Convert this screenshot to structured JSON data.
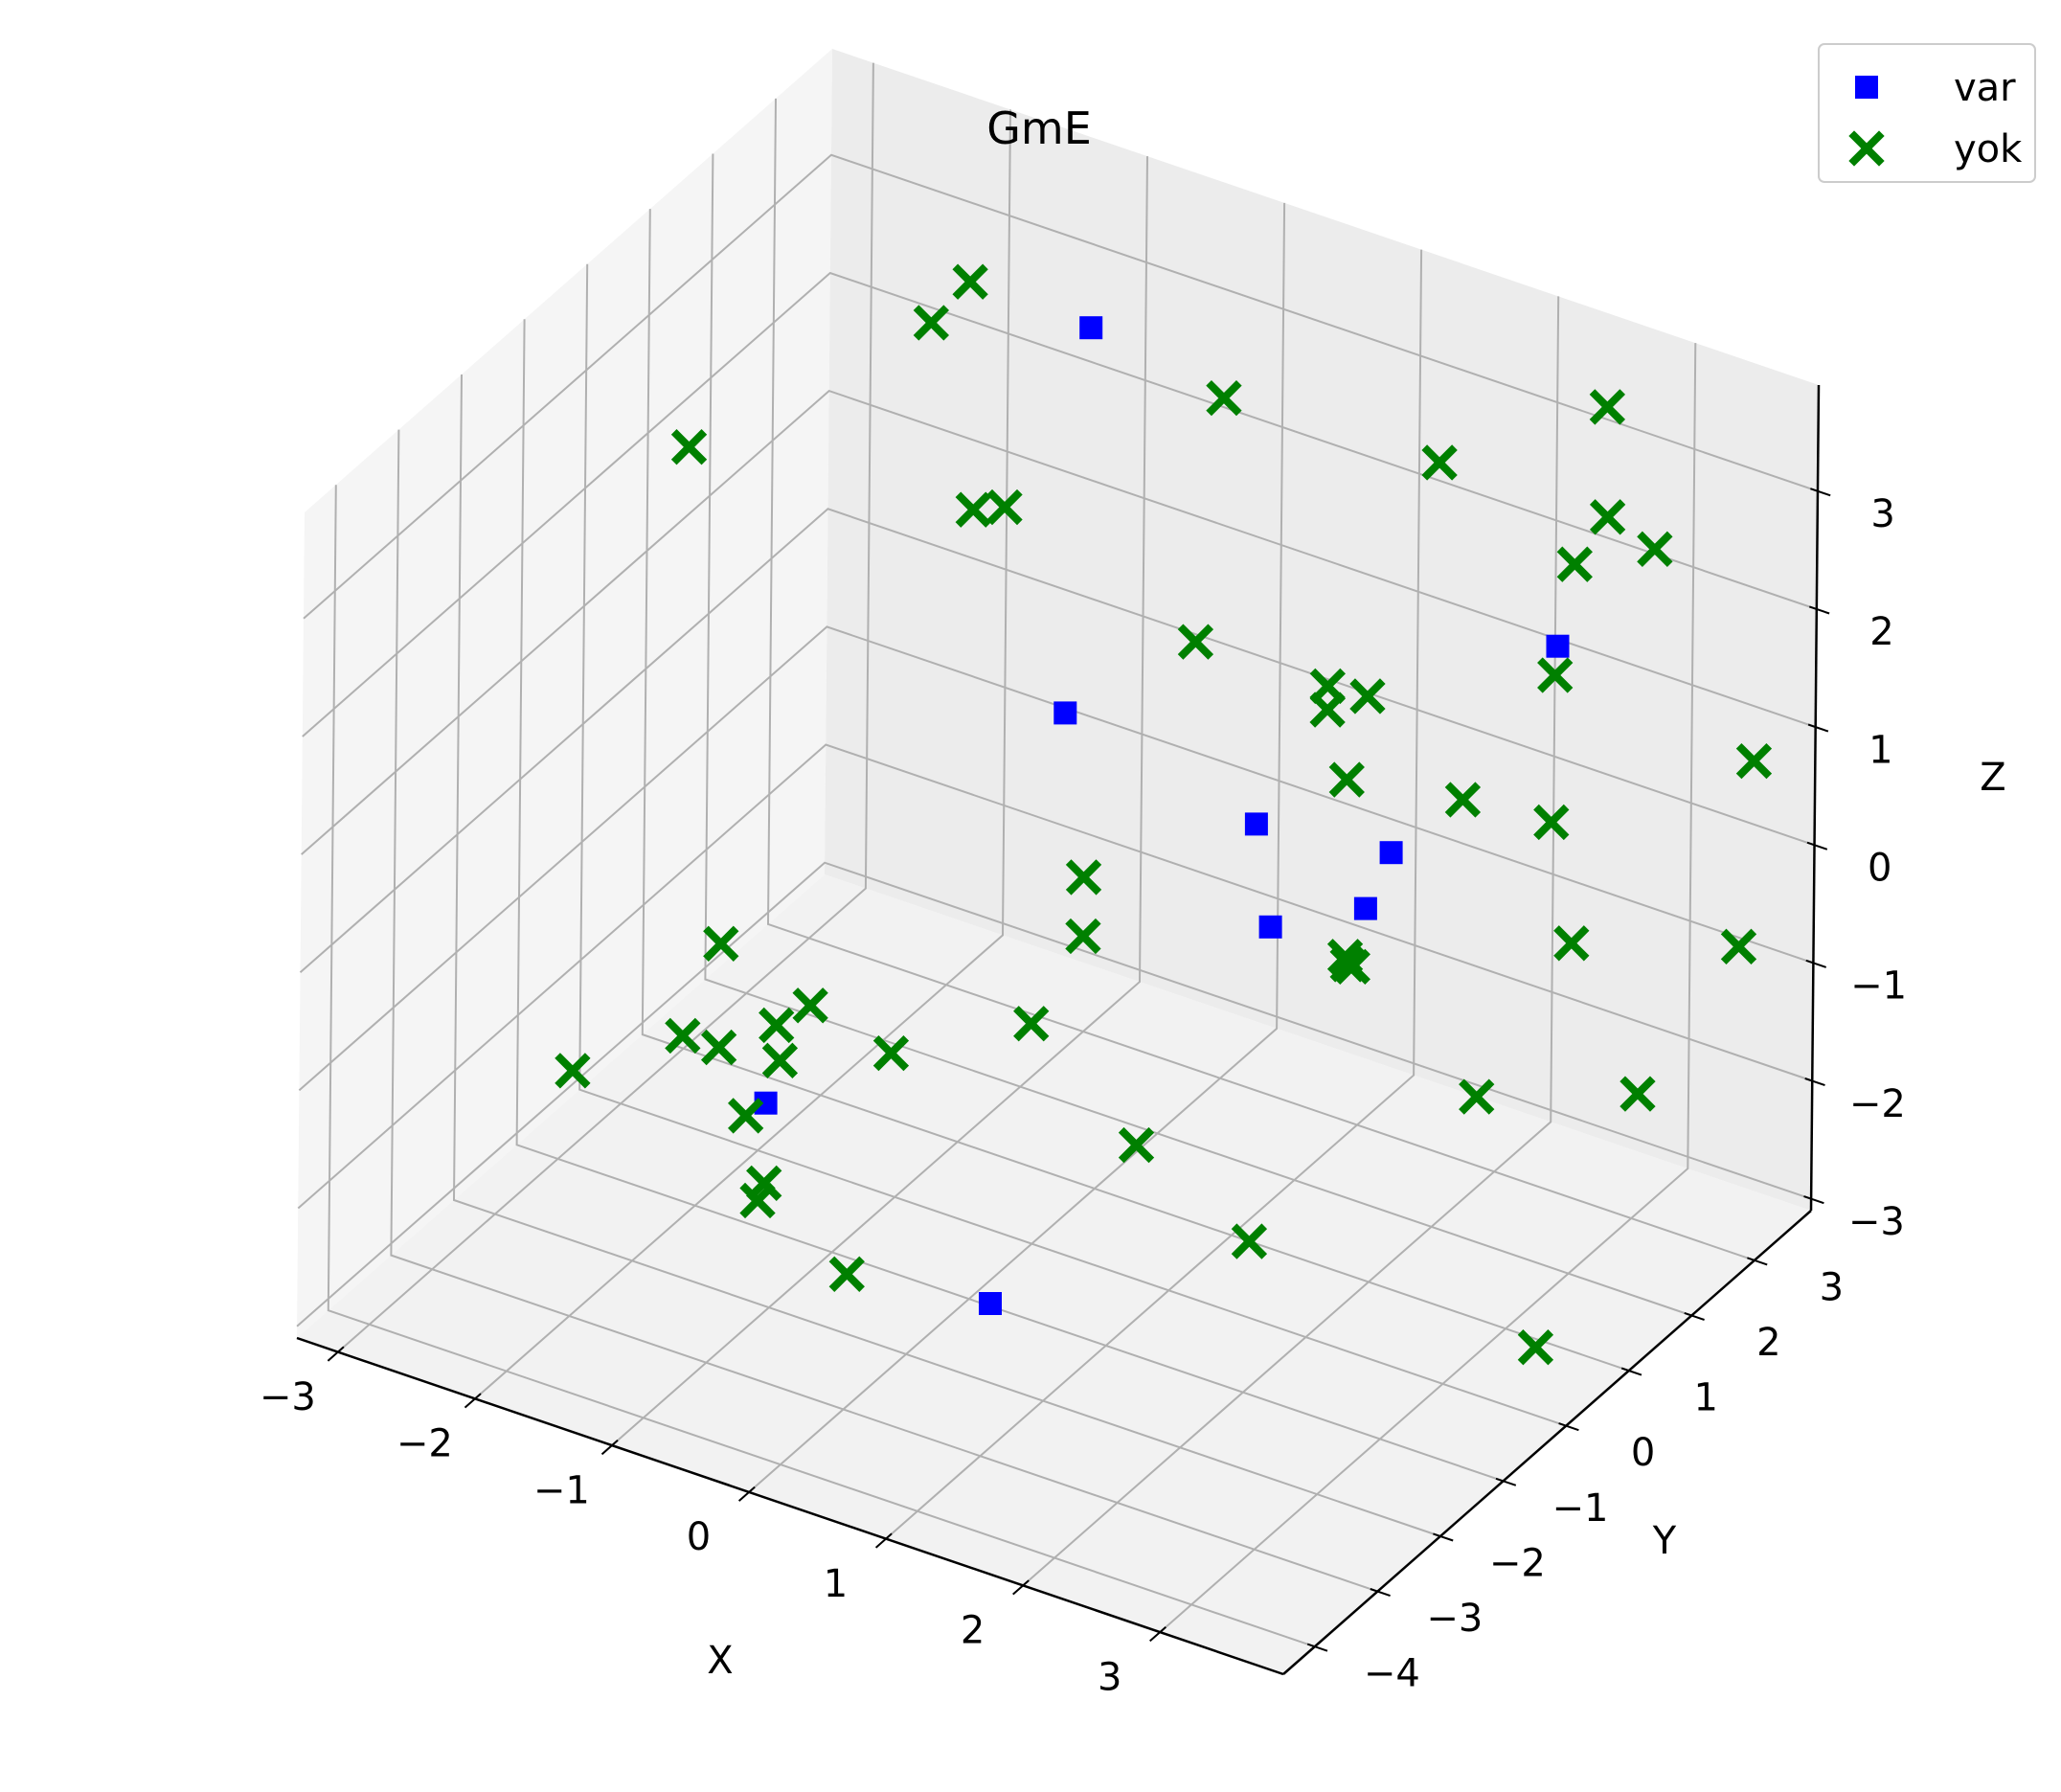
{
  "chart_data": {
    "type": "scatter",
    "projection": "3d",
    "title": "GmE",
    "xlabel": "X",
    "ylabel": "Y",
    "zlabel": "Z",
    "xticks": [
      "−3",
      "−2",
      "−1",
      "0",
      "1",
      "2",
      "3"
    ],
    "yticks": [
      "−4",
      "−3",
      "−2",
      "−1",
      "0",
      "1",
      "2",
      "3"
    ],
    "zticks": [
      "−3",
      "−2",
      "−1",
      "0",
      "1",
      "2",
      "3"
    ],
    "xlim": [
      -3.3,
      3.9
    ],
    "ylim": [
      -4.5,
      3.9
    ],
    "zlim": [
      -3.1,
      3.9
    ],
    "grid": true,
    "legend_position": "top-right",
    "series": [
      {
        "name": "var",
        "marker": "square",
        "color": "#0000ff",
        "points": [
          [
            -0.9,
            2.8,
            3.0
          ],
          [
            -0.2,
            0.9,
            0.9
          ],
          [
            2.0,
            1.3,
            0.4
          ],
          [
            0.7,
            2.0,
            -0.2
          ],
          [
            0.9,
            1.8,
            -0.9
          ],
          [
            1.5,
            2.0,
            -0.6
          ],
          [
            -1.4,
            -1.2,
            -1.9
          ],
          [
            0.7,
            -2.2,
            -2.3
          ],
          [
            2.2,
            3.5,
            1.2
          ]
        ]
      },
      {
        "name": "yok",
        "marker": "x",
        "color": "#008000",
        "points": [
          [
            -1.6,
            2.4,
            3.3
          ],
          [
            -1.7,
            2.0,
            3.1
          ],
          [
            -0.7,
            1.0,
            2.4
          ],
          [
            -0.2,
            3.4,
            2.4
          ],
          [
            1.6,
            2.9,
            2.8
          ],
          [
            2.5,
            3.6,
            3.3
          ],
          [
            2.6,
            3.4,
            2.5
          ],
          [
            2.9,
            3.5,
            2.3
          ],
          [
            2.5,
            3.1,
            2.2
          ],
          [
            -3.0,
            1.0,
            2.0
          ],
          [
            -1.2,
            1.6,
            1.9
          ],
          [
            0.2,
            2.1,
            1.1
          ],
          [
            1.3,
            1.8,
            1.3
          ],
          [
            1.3,
            1.8,
            1.1
          ],
          [
            1.5,
            2.0,
            1.2
          ],
          [
            2.5,
            2.8,
            1.4
          ],
          [
            1.4,
            1.9,
            0.5
          ],
          [
            2.2,
            2.0,
            0.6
          ],
          [
            2.8,
            2.1,
            0.6
          ],
          [
            3.5,
            3.8,
            0.6
          ],
          [
            3.0,
            2.0,
            -0.3
          ],
          [
            1.4,
            1.9,
            -1.0
          ],
          [
            1.5,
            1.8,
            -1.0
          ],
          [
            1.6,
            1.5,
            -0.8
          ],
          [
            -0.1,
            1.0,
            -0.5
          ],
          [
            -2.1,
            -0.4,
            -1.2
          ],
          [
            -0.1,
            1.0,
            -1.0
          ],
          [
            -0.2,
            0.4,
            -1.5
          ],
          [
            -2.1,
            -1.0,
            -1.7
          ],
          [
            -1.3,
            -1.2,
            -1.5
          ],
          [
            -1.7,
            -1.3,
            -1.5
          ],
          [
            -2.4,
            -2.1,
            -1.6
          ],
          [
            -1.6,
            -0.6,
            -1.6
          ],
          [
            -1.5,
            -1.3,
            -2.0
          ],
          [
            -0.9,
            -0.3,
            -1.7
          ],
          [
            -1.4,
            -0.5,
            -1.4
          ],
          [
            0.8,
            -0.1,
            -1.9
          ],
          [
            1.9,
            -0.7,
            -2.0
          ],
          [
            3.0,
            0.5,
            -0.9
          ],
          [
            3.9,
            1.1,
            -0.8
          ],
          [
            3.9,
            2.7,
            -0.3
          ],
          [
            -1.0,
            -2.1,
            -2.0
          ],
          [
            -1.0,
            -2.2,
            -2.1
          ],
          [
            -0.3,
            -2.3,
            -2.4
          ],
          [
            3.9,
            -0.5,
            -2.2
          ]
        ]
      }
    ]
  },
  "legend": {
    "entries": [
      {
        "label": "var",
        "marker": "square",
        "color": "#0000ff"
      },
      {
        "label": "yok",
        "marker": "x",
        "color": "#008000"
      }
    ]
  }
}
